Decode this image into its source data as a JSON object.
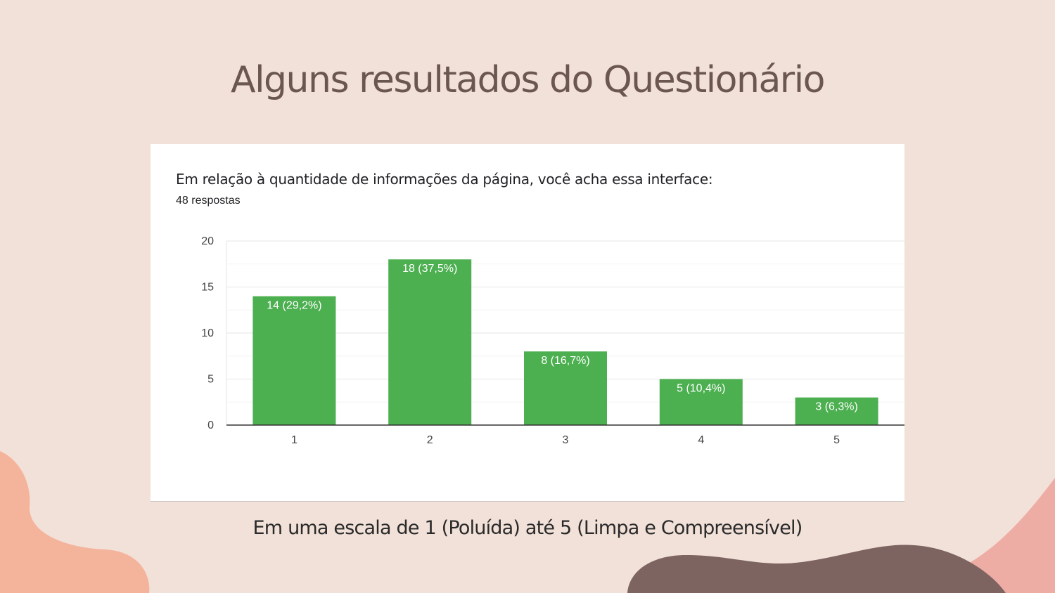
{
  "slide": {
    "title": "Alguns resultados do Questionário",
    "caption": "Em uma escala de 1 (Poluída) até 5 (Limpa e Compreensível)"
  },
  "colors": {
    "background": "#f2e1d9",
    "bar": "#4caf50",
    "title": "#6b5650"
  },
  "chart_data": {
    "type": "bar",
    "title": "Em relação à quantidade de informações da página, você acha essa interface:",
    "subtitle": "48 respostas",
    "categories": [
      "1",
      "2",
      "3",
      "4",
      "5"
    ],
    "values": [
      14,
      18,
      8,
      5,
      3
    ],
    "data_labels": [
      "14 (29,2%)",
      "18 (37,5%)",
      "8 (16,7%)",
      "5 (10,4%)",
      "3 (6,3%)"
    ],
    "y_ticks": [
      0,
      5,
      10,
      15,
      20
    ],
    "ylim": [
      0,
      20
    ],
    "grid": true,
    "legend": "none"
  }
}
